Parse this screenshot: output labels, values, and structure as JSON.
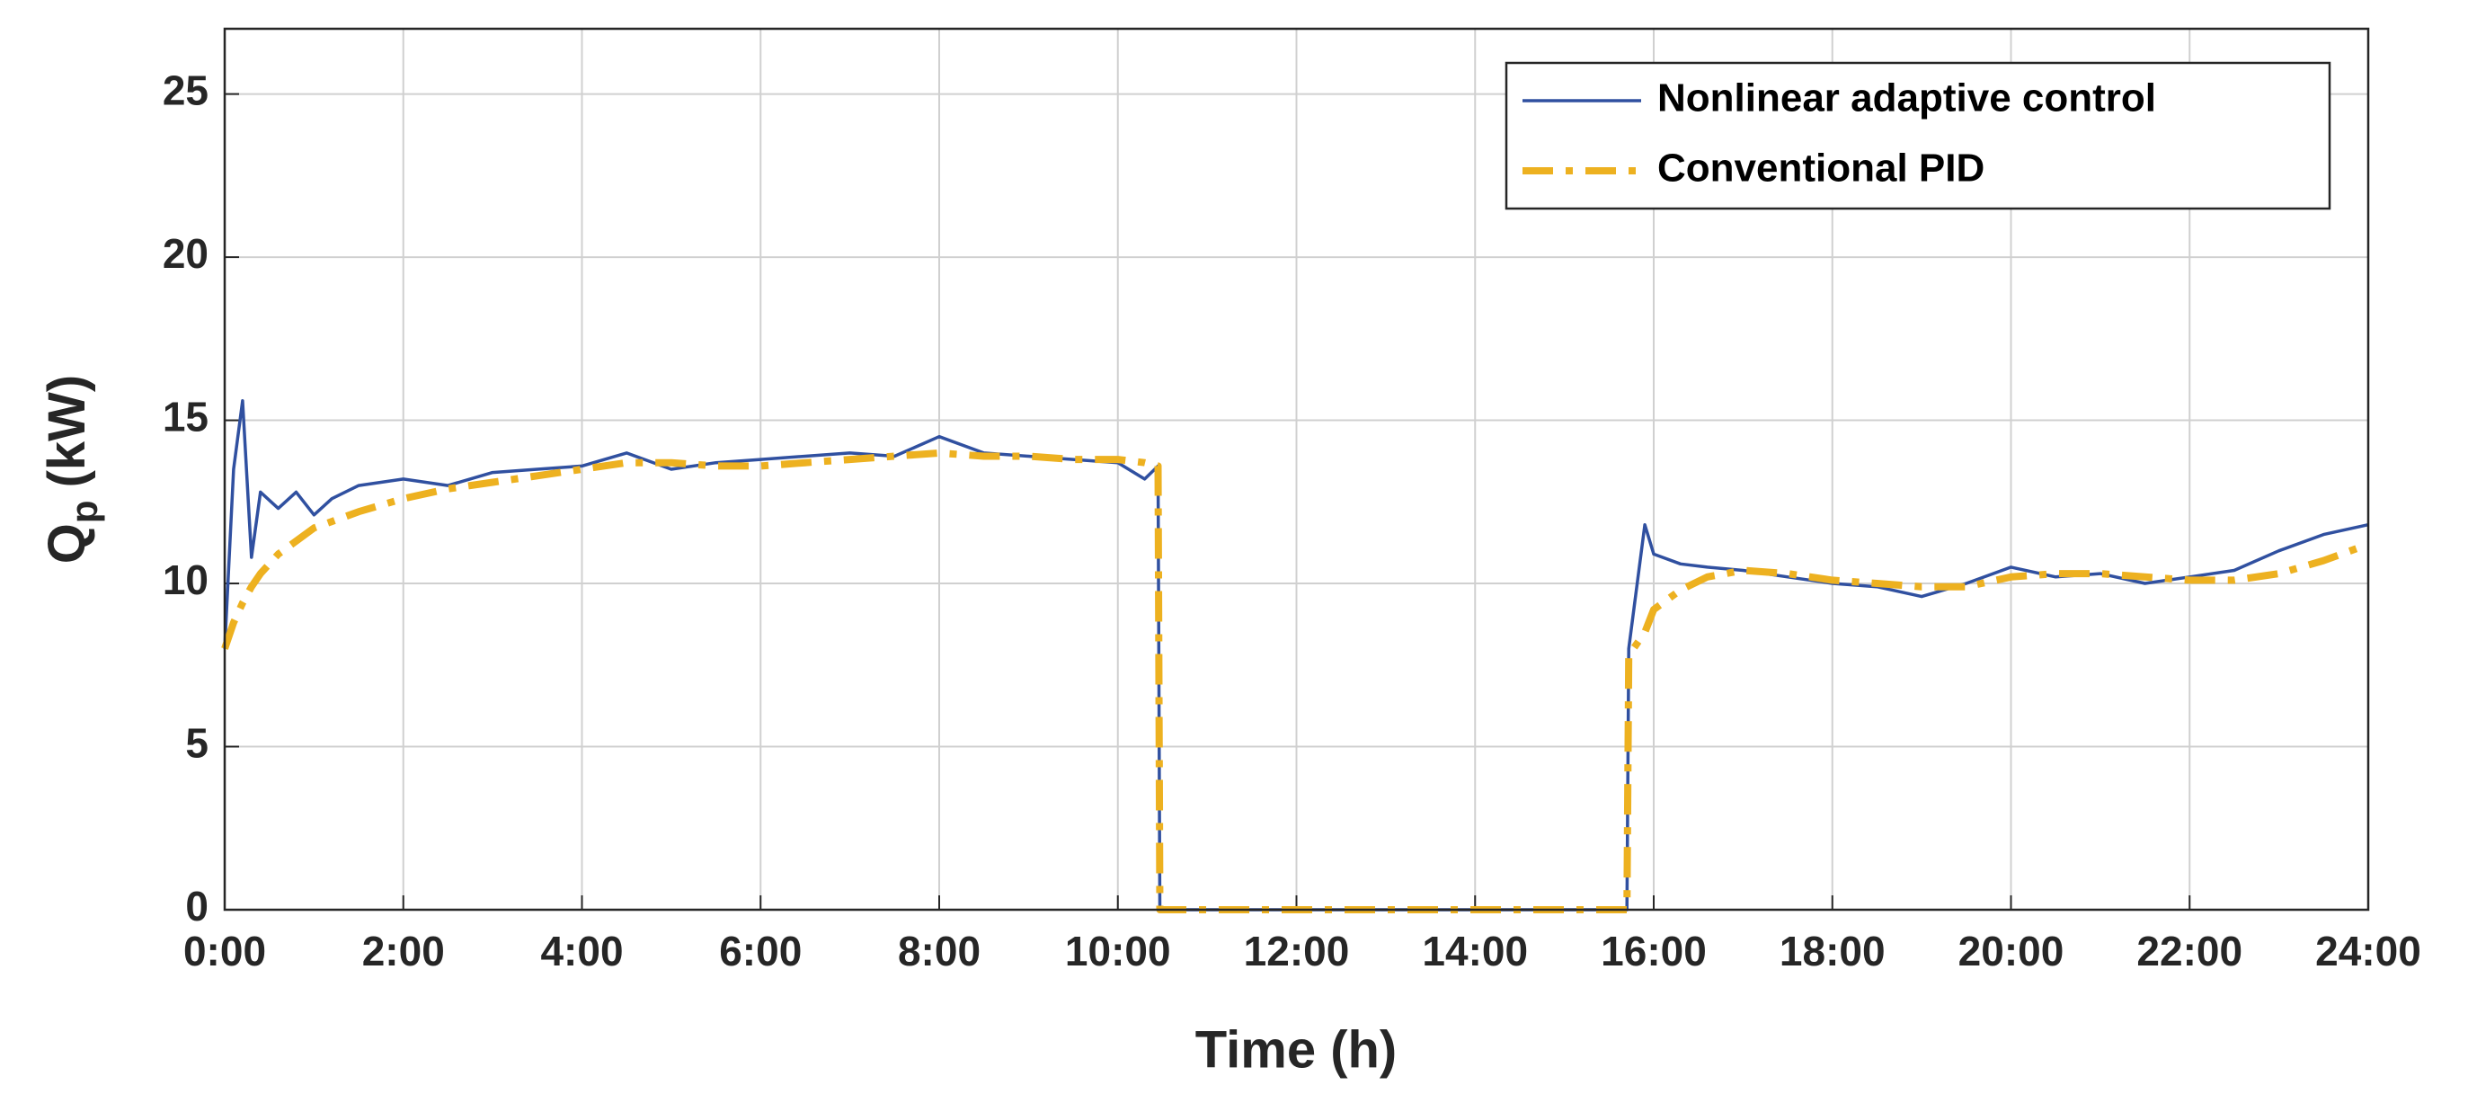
{
  "chart_data": {
    "type": "line",
    "xlabel": "Time (h)",
    "ylabel": {
      "symbol": "Q",
      "subscript": "p",
      "unit": "(kW)"
    },
    "x": [
      0,
      0.1,
      0.2,
      0.3,
      0.4,
      0.6,
      0.8,
      1.0,
      1.2,
      1.5,
      2,
      2.5,
      3,
      3.5,
      4,
      4.5,
      5,
      5.5,
      6,
      6.5,
      7,
      7.5,
      8,
      8.5,
      9,
      9.5,
      10,
      10.3,
      10.45,
      10.47,
      12,
      14,
      15.7,
      15.72,
      15.9,
      16,
      16.3,
      16.6,
      17,
      17.5,
      18,
      18.5,
      19,
      19.5,
      20,
      20.5,
      21,
      21.5,
      22,
      22.5,
      23,
      23.5,
      24
    ],
    "series": [
      {
        "name": "Nonlinear adaptive control",
        "color": "#3050a0",
        "style": "solid",
        "values": [
          8.0,
          13.5,
          15.6,
          10.8,
          12.8,
          12.3,
          12.8,
          12.1,
          12.6,
          13.0,
          13.2,
          13.0,
          13.4,
          13.5,
          13.6,
          14.0,
          13.5,
          13.7,
          13.8,
          13.9,
          14.0,
          13.9,
          14.5,
          14.0,
          13.9,
          13.8,
          13.7,
          13.2,
          13.6,
          0,
          0,
          0,
          0,
          8.0,
          11.8,
          10.9,
          10.6,
          10.5,
          10.4,
          10.2,
          10.0,
          9.9,
          9.6,
          10.0,
          10.5,
          10.2,
          10.3,
          10.0,
          10.2,
          10.4,
          11.0,
          11.5,
          11.8
        ]
      },
      {
        "name": "Conventional PID",
        "color": "#edb120",
        "style": "dashdot",
        "values": [
          8.0,
          8.8,
          9.4,
          9.9,
          10.3,
          10.9,
          11.3,
          11.7,
          11.9,
          12.2,
          12.6,
          12.9,
          13.1,
          13.3,
          13.5,
          13.7,
          13.7,
          13.6,
          13.6,
          13.7,
          13.8,
          13.9,
          14.0,
          13.9,
          13.9,
          13.8,
          13.8,
          13.7,
          13.6,
          0,
          0,
          0,
          0,
          7.8,
          8.5,
          9.2,
          9.8,
          10.2,
          10.4,
          10.3,
          10.1,
          10.0,
          9.9,
          9.9,
          10.2,
          10.3,
          10.3,
          10.2,
          10.1,
          10.1,
          10.3,
          10.7,
          11.2
        ]
      }
    ],
    "xlim": [
      0,
      24
    ],
    "xticks": [
      {
        "value": 0,
        "label": "0:00"
      },
      {
        "value": 2,
        "label": "2:00"
      },
      {
        "value": 4,
        "label": "4:00"
      },
      {
        "value": 6,
        "label": "6:00"
      },
      {
        "value": 8,
        "label": "8:00"
      },
      {
        "value": 10,
        "label": "10:00"
      },
      {
        "value": 12,
        "label": "12:00"
      },
      {
        "value": 14,
        "label": "14:00"
      },
      {
        "value": 16,
        "label": "16:00"
      },
      {
        "value": 18,
        "label": "18:00"
      },
      {
        "value": 20,
        "label": "20:00"
      },
      {
        "value": 22,
        "label": "22:00"
      },
      {
        "value": 24,
        "label": "24:00"
      }
    ],
    "ylim": [
      0,
      27
    ],
    "yticks": [
      0,
      5,
      10,
      15,
      20,
      25
    ],
    "grid": true,
    "legend": "upper right"
  }
}
